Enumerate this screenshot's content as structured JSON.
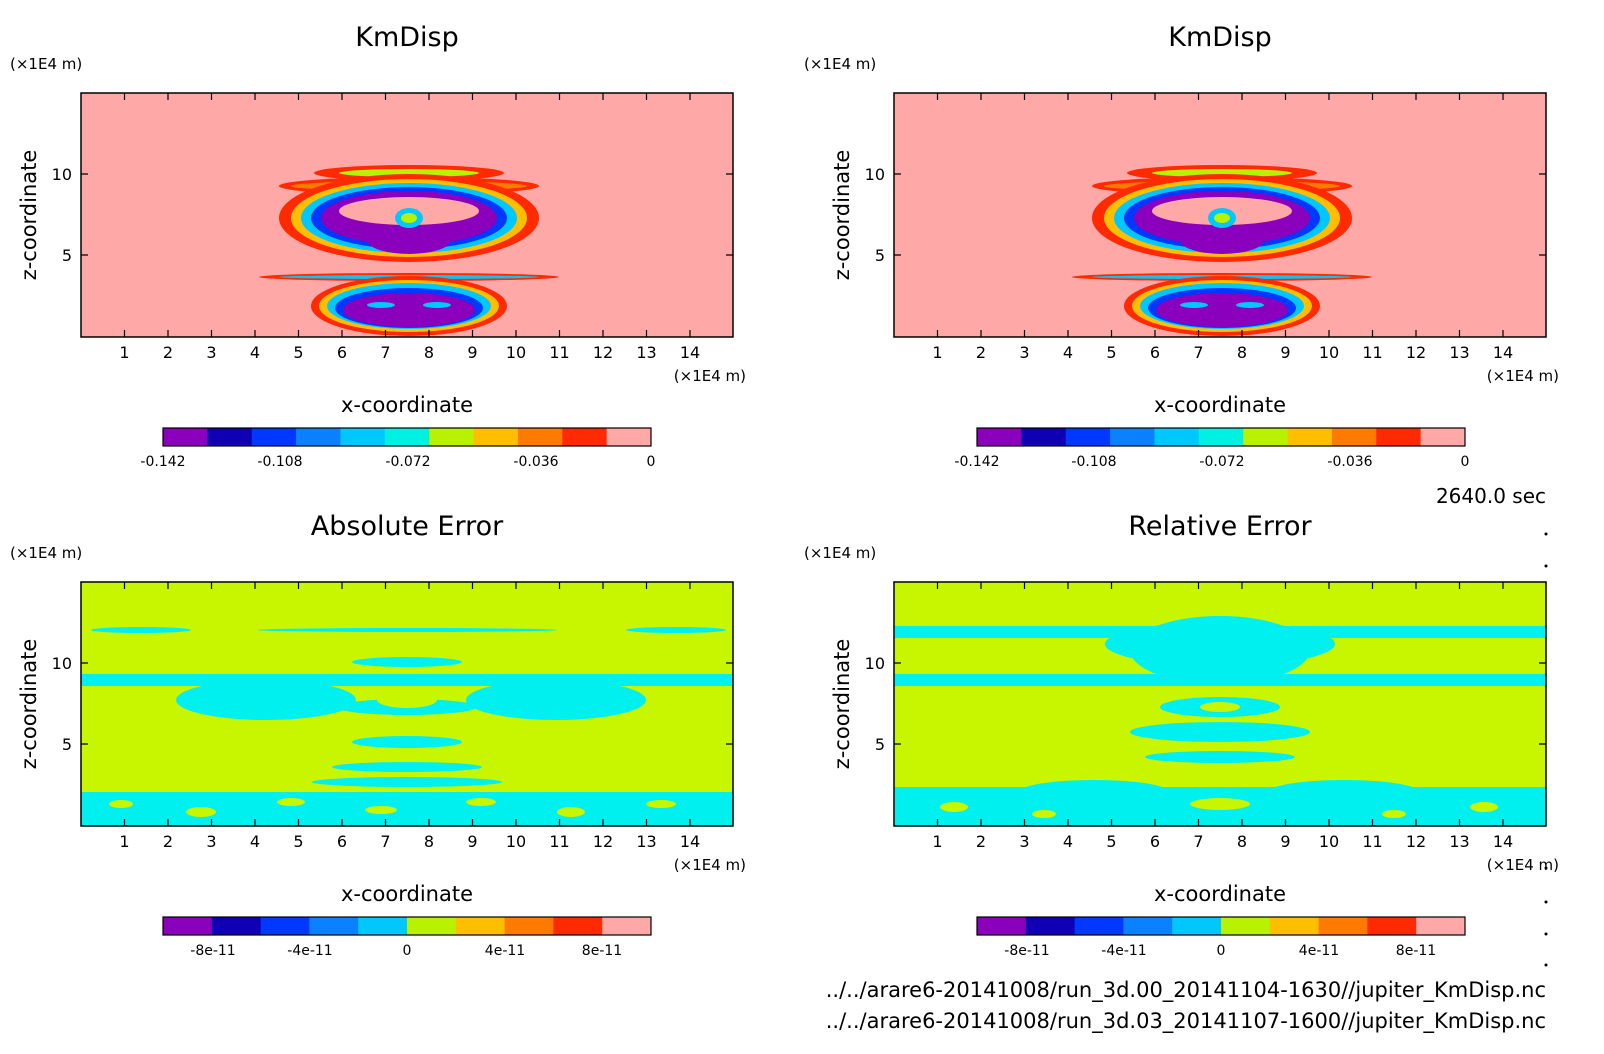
{
  "colors": {
    "palette": [
      "#8a00bc",
      "#0f00b4",
      "#0038ff",
      "#0a82ff",
      "#00c8ff",
      "#00f0e2",
      "#b8f200",
      "#ffbe00",
      "#ff7a00",
      "#ff2a00",
      "#ffa8a8"
    ],
    "panel_background": "#ffa8a8",
    "error_background": "#c8f500",
    "error_feature": "#00f0f0"
  },
  "chart_data": [
    {
      "type": "heatmap",
      "title": "KmDisp",
      "xlabel": "x-coordinate",
      "ylabel": "z-coordinate",
      "x_unit": "(×1E4 m)",
      "y_unit": "(×1E4 m)",
      "xticks": [
        "1",
        "2",
        "3",
        "4",
        "5",
        "6",
        "7",
        "8",
        "9",
        "10",
        "11",
        "12",
        "13",
        "14"
      ],
      "yticks": [
        "5",
        "10"
      ],
      "xlim": [
        0,
        15
      ],
      "ylim": [
        0,
        15
      ],
      "colorbar": {
        "range": [
          -0.142,
          0
        ],
        "levels": 11,
        "tick_labels": [
          "-0.142",
          "-0.108",
          "-0.072",
          "-0.036",
          "0"
        ]
      }
    },
    {
      "type": "heatmap",
      "title": "KmDisp",
      "xlabel": "x-coordinate",
      "ylabel": "z-coordinate",
      "x_unit": "(×1E4 m)",
      "y_unit": "(×1E4 m)",
      "xticks": [
        "1",
        "2",
        "3",
        "4",
        "5",
        "6",
        "7",
        "8",
        "9",
        "10",
        "11",
        "12",
        "13",
        "14"
      ],
      "yticks": [
        "5",
        "10"
      ],
      "xlim": [
        0,
        15
      ],
      "ylim": [
        0,
        15
      ],
      "colorbar": {
        "range": [
          -0.142,
          0
        ],
        "levels": 11,
        "tick_labels": [
          "-0.142",
          "-0.108",
          "-0.072",
          "-0.036",
          "0"
        ]
      }
    },
    {
      "type": "heatmap",
      "title": "Absolute Error",
      "xlabel": "x-coordinate",
      "ylabel": "z-coordinate",
      "x_unit": "(×1E4 m)",
      "y_unit": "(×1E4 m)",
      "xticks": [
        "1",
        "2",
        "3",
        "4",
        "5",
        "6",
        "7",
        "8",
        "9",
        "10",
        "11",
        "12",
        "13",
        "14"
      ],
      "yticks": [
        "5",
        "10"
      ],
      "xlim": [
        0,
        15
      ],
      "ylim": [
        0,
        15
      ],
      "colorbar": {
        "range": [
          -1e-10,
          1e-10
        ],
        "levels": 10,
        "tick_labels": [
          "-8e-11",
          "-4e-11",
          "0",
          "4e-11",
          "8e-11"
        ]
      }
    },
    {
      "type": "heatmap",
      "title": "Relative Error",
      "xlabel": "x-coordinate",
      "ylabel": "z-coordinate",
      "x_unit": "(×1E4 m)",
      "y_unit": "(×1E4 m)",
      "xticks": [
        "1",
        "2",
        "3",
        "4",
        "5",
        "6",
        "7",
        "8",
        "9",
        "10",
        "11",
        "12",
        "13",
        "14"
      ],
      "yticks": [
        "5",
        "10"
      ],
      "xlim": [
        0,
        15
      ],
      "ylim": [
        0,
        15
      ],
      "colorbar": {
        "range": [
          -1e-10,
          1e-10
        ],
        "levels": 10,
        "tick_labels": [
          "-8e-11",
          "-4e-11",
          "0",
          "4e-11",
          "8e-11"
        ]
      }
    }
  ],
  "time_label": "2640.0 sec",
  "file_paths": [
    "../../arare6-20141008/run_3d.00_20141104-1630//jupiter_KmDisp.nc",
    "../../arare6-20141008/run_3d.03_20141107-1600//jupiter_KmDisp.nc"
  ]
}
